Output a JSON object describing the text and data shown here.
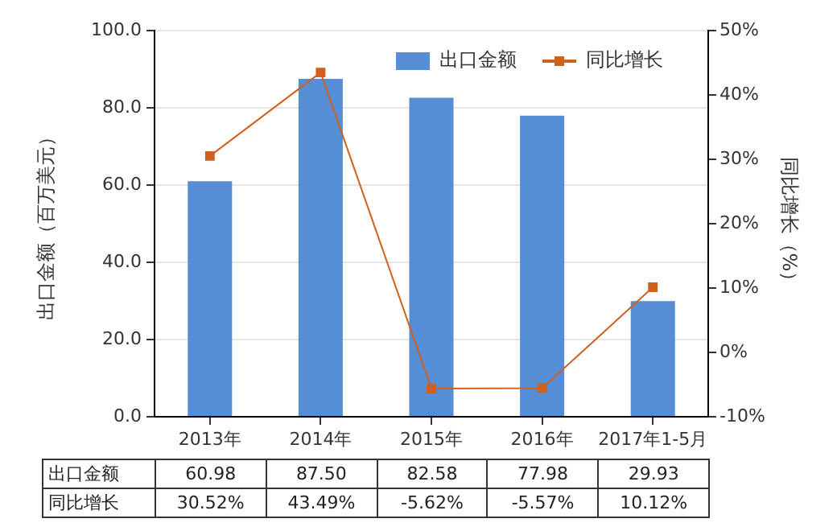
{
  "chart_data": {
    "type": "bar",
    "categories": [
      "2013年",
      "2014年",
      "2015年",
      "2016年",
      "2017年1-5月"
    ],
    "series": [
      {
        "name": "出口金额",
        "color": "#558ed5",
        "values": [
          60.98,
          87.5,
          82.58,
          77.98,
          29.93
        ],
        "value_labels": [
          "60.98",
          "87.50",
          "82.58",
          "77.98",
          "29.93"
        ]
      },
      {
        "name": "同比增长",
        "type": "line",
        "axis": "y2",
        "color": "#d0601e",
        "values": [
          30.52,
          43.49,
          -5.62,
          -5.57,
          10.12
        ],
        "value_labels": [
          "30.52%",
          "43.49%",
          "-5.62%",
          "-5.57%",
          "10.12%"
        ]
      }
    ],
    "ylabel": "出口金额（百万美元）",
    "y2label": "同比增长（%）",
    "ylim": [
      0,
      100
    ],
    "yticks": [
      {
        "value": 0,
        "label": "0.0"
      },
      {
        "value": 20,
        "label": "20.0"
      },
      {
        "value": 40,
        "label": "40.0"
      },
      {
        "value": 60,
        "label": "60.0"
      },
      {
        "value": 80,
        "label": "80.0"
      },
      {
        "value": 100,
        "label": "100.0"
      }
    ],
    "y2lim": [
      -10,
      50
    ],
    "y2ticks": [
      {
        "value": -10,
        "label": "-10%"
      },
      {
        "value": 0,
        "label": "0%"
      },
      {
        "value": 10,
        "label": "10%"
      },
      {
        "value": 20,
        "label": "20%"
      },
      {
        "value": 30,
        "label": "30%"
      },
      {
        "value": 40,
        "label": "40%"
      },
      {
        "value": 50,
        "label": "50%"
      }
    ],
    "grid": "y",
    "legend": "top right",
    "marker": "square"
  }
}
